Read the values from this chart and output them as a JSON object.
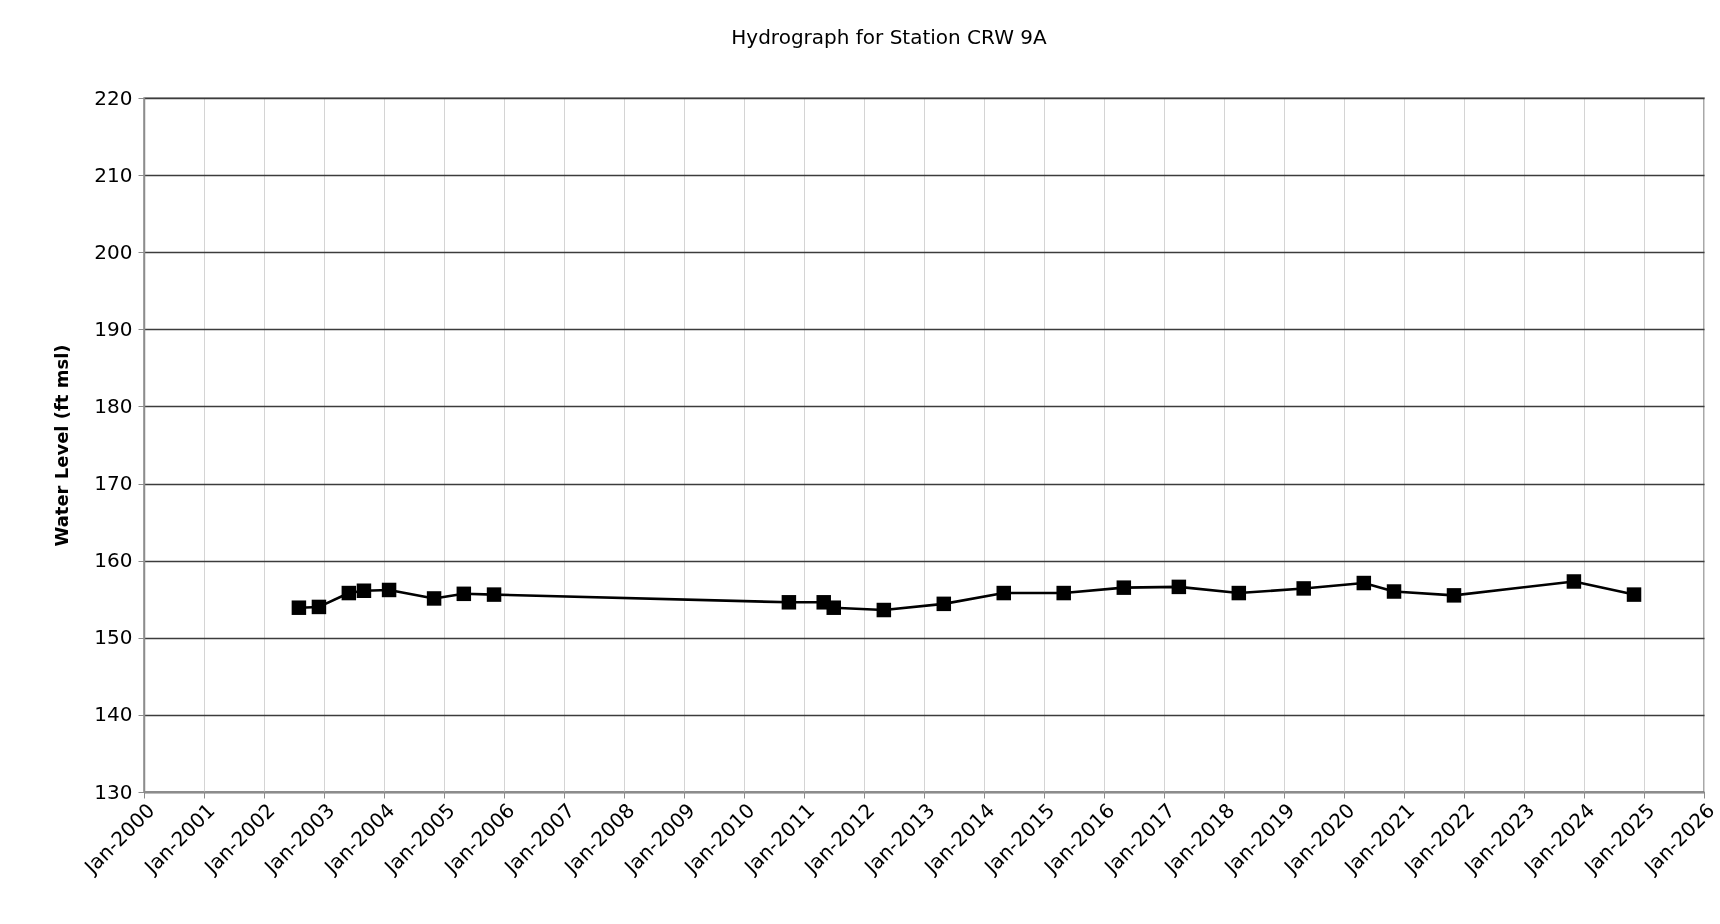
{
  "chart_data": {
    "type": "line",
    "title": "Hydrograph for Station CRW  9A",
    "ylabel": "Water Level (ft msl)",
    "x": [
      "2002-08",
      "2002-12",
      "2003-06",
      "2003-09",
      "2004-02",
      "2004-11",
      "2005-05",
      "2005-11",
      "2010-10",
      "2011-05",
      "2011-07",
      "2012-05",
      "2013-05",
      "2014-05",
      "2015-05",
      "2016-05",
      "2017-04",
      "2018-04",
      "2019-05",
      "2020-05",
      "2020-11",
      "2021-11",
      "2023-11",
      "2024-11"
    ],
    "series": [
      {
        "color": "#000000",
        "values": [
          153.9,
          154.0,
          155.8,
          156.1,
          156.2,
          155.1,
          155.7,
          155.6,
          154.6,
          154.6,
          153.9,
          153.6,
          154.4,
          155.8,
          155.8,
          156.5,
          156.6,
          155.8,
          156.4,
          157.1,
          156.0,
          155.5,
          157.3,
          155.6
        ]
      }
    ],
    "xlim": [
      "2000-01",
      "2026-01"
    ],
    "xticks": [
      {
        "value": "2000-01",
        "label": "Jan-2000"
      },
      {
        "value": "2001-01",
        "label": "Jan-2001"
      },
      {
        "value": "2002-01",
        "label": "Jan-2002"
      },
      {
        "value": "2003-01",
        "label": "Jan-2003"
      },
      {
        "value": "2004-01",
        "label": "Jan-2004"
      },
      {
        "value": "2005-01",
        "label": "Jan-2005"
      },
      {
        "value": "2006-01",
        "label": "Jan-2006"
      },
      {
        "value": "2007-01",
        "label": "Jan-2007"
      },
      {
        "value": "2008-01",
        "label": "Jan-2008"
      },
      {
        "value": "2009-01",
        "label": "Jan-2009"
      },
      {
        "value": "2010-01",
        "label": "Jan-2010"
      },
      {
        "value": "2011-01",
        "label": "Jan-2011"
      },
      {
        "value": "2012-01",
        "label": "Jan-2012"
      },
      {
        "value": "2013-01",
        "label": "Jan-2013"
      },
      {
        "value": "2014-01",
        "label": "Jan-2014"
      },
      {
        "value": "2015-01",
        "label": "Jan-2015"
      },
      {
        "value": "2016-01",
        "label": "Jan-2016"
      },
      {
        "value": "2017-01",
        "label": "Jan-2017"
      },
      {
        "value": "2018-01",
        "label": "Jan-2018"
      },
      {
        "value": "2019-01",
        "label": "Jan-2019"
      },
      {
        "value": "2020-01",
        "label": "Jan-2020"
      },
      {
        "value": "2021-01",
        "label": "Jan-2021"
      },
      {
        "value": "2022-01",
        "label": "Jan-2022"
      },
      {
        "value": "2023-01",
        "label": "Jan-2023"
      },
      {
        "value": "2024-01",
        "label": "Jan-2024"
      },
      {
        "value": "2025-01",
        "label": "Jan-2025"
      },
      {
        "value": "2026-01",
        "label": "Jan-2026"
      }
    ],
    "ylim": [
      130,
      220
    ],
    "yticks": [
      130,
      140,
      150,
      160,
      170,
      180,
      190,
      200,
      210,
      220
    ],
    "grid": true,
    "marker": "square",
    "line_style": "solid"
  }
}
